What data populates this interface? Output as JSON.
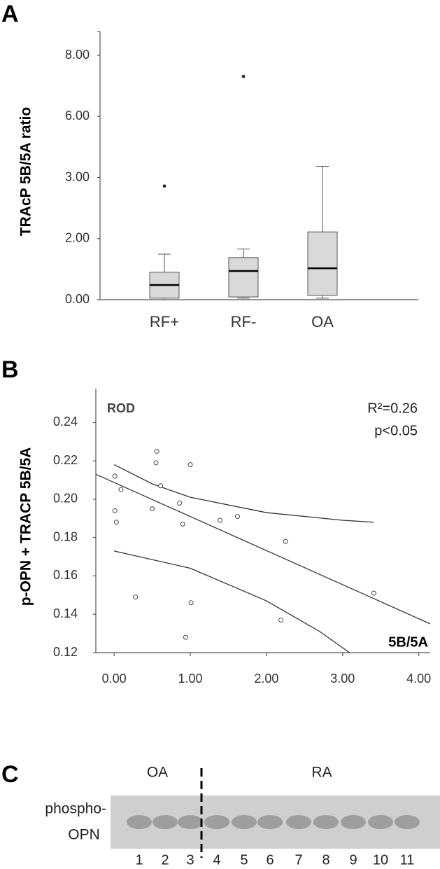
{
  "panel_labels": [
    "A",
    "B",
    "C"
  ],
  "chart_data": [
    {
      "type": "box",
      "y_label": "TRAcP 5B/5A ratio",
      "categories": [
        "RF+",
        "RF-",
        "OA"
      ],
      "boxes": [
        {
          "whislo": 0,
          "q1": 0.05,
          "med": 0.48,
          "q3": 0.9,
          "whishi": 1.49,
          "fliers": [
            2.86
          ]
        },
        {
          "whislo": 0.05,
          "q1": 0.09,
          "med": 0.94,
          "q3": 1.38,
          "whishi": 1.66,
          "fliers": [
            7.31
          ]
        },
        {
          "whislo": 0.05,
          "q1": 0.14,
          "med": 1.03,
          "q3": 2.11,
          "whishi": 3.55,
          "fliers": []
        }
      ],
      "color": "#d9d9d9",
      "yscale": "piecewise",
      "ylim": [
        0,
        8.78
      ],
      "yticks": [
        {
          "value": 0,
          "label": "0.00"
        },
        {
          "value": 2,
          "label": "2.00"
        },
        {
          "value": 3,
          "label": "3.00"
        },
        {
          "value": 6,
          "label": "6.00"
        },
        {
          "value": 8,
          "label": "8.00"
        }
      ]
    },
    {
      "type": "scatter",
      "y_label": "p-OPN + TRACP 5B/5A",
      "annotations": [
        "ROD",
        "R²=0.26",
        "p<0.05",
        "5B/5A"
      ],
      "x": [
        0.01,
        0.09,
        0.01,
        0.03,
        0.28,
        0.56,
        0.55,
        0.61,
        0.5,
        0.86,
        0.9,
        1.0,
        1.01,
        0.94,
        1.39,
        1.62,
        2.25,
        2.19,
        3.41
      ],
      "values": [
        0.212,
        0.205,
        0.194,
        0.188,
        0.149,
        0.225,
        0.219,
        0.207,
        0.195,
        0.198,
        0.187,
        0.218,
        0.146,
        0.128,
        0.189,
        0.191,
        0.178,
        0.137,
        0.151
      ],
      "lines": [
        {
          "x": [
            -0.24,
            4.15
          ],
          "values": [
            0.213,
            0.135
          ]
        },
        {
          "x": [
            0,
            0.5,
            1,
            2,
            3,
            3.41
          ],
          "values": [
            0.218,
            0.208,
            0.201,
            0.193,
            0.189,
            0.188
          ]
        },
        {
          "x": [
            0,
            1,
            2,
            2.7,
            3.09
          ],
          "values": [
            0.173,
            0.164,
            0.147,
            0.131,
            0.12
          ]
        }
      ],
      "xlim": [
        -0.24,
        4.15
      ],
      "ylim": [
        0.12,
        0.254
      ],
      "xticks": [
        {
          "value": 0,
          "label": "0.00"
        },
        {
          "value": 1,
          "label": "1.00"
        },
        {
          "value": 2,
          "label": "2.00"
        },
        {
          "value": 3,
          "label": "3.00"
        },
        {
          "value": 4,
          "label": "4.00"
        }
      ],
      "yticks": [
        {
          "value": 0.12,
          "label": "0.12"
        },
        {
          "value": 0.14,
          "label": "0.14"
        },
        {
          "value": 0.16,
          "label": "0.16"
        },
        {
          "value": 0.18,
          "label": "0.18"
        },
        {
          "value": 0.2,
          "label": "0.20"
        },
        {
          "value": 0.22,
          "label": "0.22"
        },
        {
          "value": 0.24,
          "label": "0.24"
        }
      ]
    }
  ],
  "blot": {
    "groups": [
      "OA",
      "RA"
    ],
    "row_label": [
      "phospho-",
      "OPN"
    ],
    "lanes": [
      "1",
      "2",
      "3",
      "4",
      "5",
      "6",
      "7",
      "8",
      "9",
      "10",
      "11"
    ]
  }
}
